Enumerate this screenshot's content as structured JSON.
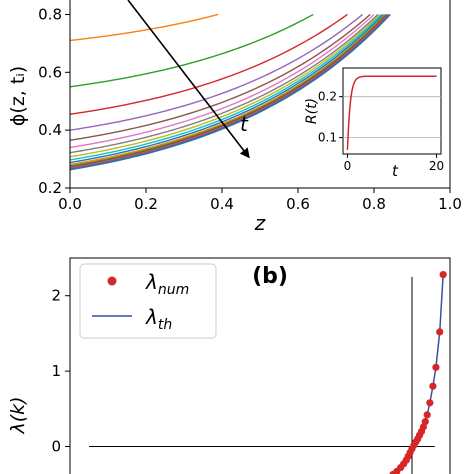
{
  "chart_data": [
    {
      "panel_id": "a",
      "type": "line",
      "xlabel": "z",
      "ylabel": "ϕ(z, tᵢ)",
      "xlim": [
        0.0,
        1.0
      ],
      "ylim": [
        0.2,
        0.85
      ],
      "x_ticks": [
        "0.0",
        "0.2",
        "0.4",
        "0.6",
        "0.8",
        "1.0"
      ],
      "y_ticks": [
        "0.2",
        "0.4",
        "0.6",
        "0.8"
      ],
      "x_tick_values": [
        0.0,
        0.2,
        0.4,
        0.6,
        0.8,
        1.0
      ],
      "y_tick_values": [
        0.2,
        0.4,
        0.6,
        0.8
      ],
      "arrow_label": "t",
      "series_shape": {
        "growth_rate": 2.2,
        "end_value": 0.8
      },
      "series": [
        {
          "color": "#ff7f0e",
          "y0": 0.71,
          "x_end": 0.39
        },
        {
          "color": "#2ca02c",
          "y0": 0.55,
          "x_end": 0.64
        },
        {
          "color": "#d62728",
          "y0": 0.455,
          "x_end": 0.73
        },
        {
          "color": "#9467bd",
          "y0": 0.4,
          "x_end": 0.77
        },
        {
          "color": "#8c564b",
          "y0": 0.365,
          "x_end": 0.79
        },
        {
          "color": "#e377c2",
          "y0": 0.34,
          "x_end": 0.8
        },
        {
          "color": "#7f7f7f",
          "y0": 0.322,
          "x_end": 0.81
        },
        {
          "color": "#bcbd22",
          "y0": 0.308,
          "x_end": 0.815
        },
        {
          "color": "#17becf",
          "y0": 0.297,
          "x_end": 0.82
        },
        {
          "color": "#1f77b4",
          "y0": 0.288,
          "x_end": 0.825
        },
        {
          "color": "#ff7f0e",
          "y0": 0.281,
          "x_end": 0.83
        },
        {
          "color": "#2ca02c",
          "y0": 0.276,
          "x_end": 0.832
        },
        {
          "color": "#d62728",
          "y0": 0.272,
          "x_end": 0.835
        },
        {
          "color": "#9467bd",
          "y0": 0.269,
          "x_end": 0.838
        },
        {
          "color": "#8c564b",
          "y0": 0.266,
          "x_end": 0.84
        },
        {
          "color": "#1f77b4",
          "y0": 0.263,
          "x_end": 0.843
        }
      ]
    },
    {
      "panel_id": "a-inset",
      "type": "line",
      "xlabel": "t",
      "ylabel": "R(t)",
      "xlim": [
        -1,
        21
      ],
      "ylim": [
        0.06,
        0.27
      ],
      "x_ticks": [
        "0",
        "20"
      ],
      "y_ticks": [
        "0.1",
        "0.2"
      ],
      "x_tick_values": [
        0,
        20
      ],
      "y_tick_values": [
        0.1,
        0.2
      ],
      "color": "#d62728",
      "curve": {
        "start": 0.07,
        "plateau": 0.25,
        "rate": 1.6,
        "t_max": 20
      }
    },
    {
      "panel_id": "b",
      "type": "scatter",
      "panel_label": "(b)",
      "xlabel": "",
      "ylabel": "λ(k)",
      "xlim": [
        0,
        1
      ],
      "ylim": [
        -0.55,
        2.5
      ],
      "y_ticks": [
        "0",
        "1",
        "2"
      ],
      "y_tick_values": [
        0,
        1,
        2
      ],
      "vertical_line_x": 0.9,
      "horizontal_line_y": 0,
      "legend": [
        {
          "symbol": "λ",
          "subscript": "num",
          "style": "marker",
          "color": "#d62728"
        },
        {
          "symbol": "λ",
          "subscript": "th",
          "style": "line",
          "color": "#3f4fa0"
        }
      ],
      "points": [
        {
          "x": 0.78,
          "y": -0.5
        },
        {
          "x": 0.8,
          "y": -0.47
        },
        {
          "x": 0.82,
          "y": -0.44
        },
        {
          "x": 0.835,
          "y": -0.41
        },
        {
          "x": 0.85,
          "y": -0.37
        },
        {
          "x": 0.86,
          "y": -0.33
        },
        {
          "x": 0.87,
          "y": -0.28
        },
        {
          "x": 0.878,
          "y": -0.23
        },
        {
          "x": 0.885,
          "y": -0.18
        },
        {
          "x": 0.89,
          "y": -0.13
        },
        {
          "x": 0.895,
          "y": -0.08
        },
        {
          "x": 0.9,
          "y": -0.03
        },
        {
          "x": 0.905,
          "y": 0.02
        },
        {
          "x": 0.91,
          "y": 0.06
        },
        {
          "x": 0.915,
          "y": 0.1
        },
        {
          "x": 0.92,
          "y": 0.15
        },
        {
          "x": 0.925,
          "y": 0.2
        },
        {
          "x": 0.93,
          "y": 0.26
        },
        {
          "x": 0.935,
          "y": 0.33
        },
        {
          "x": 0.94,
          "y": 0.42
        },
        {
          "x": 0.947,
          "y": 0.58
        },
        {
          "x": 0.955,
          "y": 0.8
        },
        {
          "x": 0.963,
          "y": 1.05
        },
        {
          "x": 0.973,
          "y": 1.52
        },
        {
          "x": 0.982,
          "y": 2.28
        }
      ]
    }
  ]
}
